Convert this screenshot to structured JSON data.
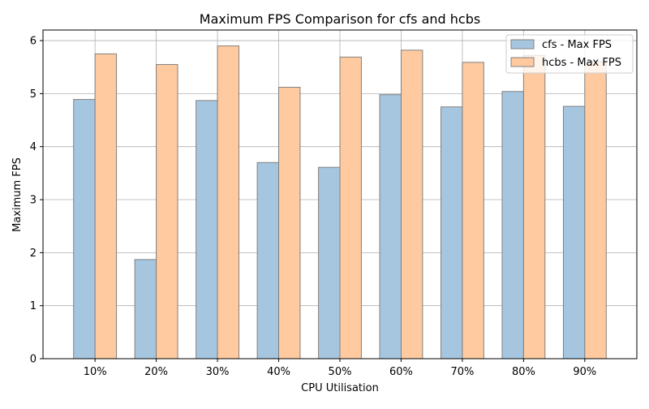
{
  "chart_data": {
    "type": "bar",
    "title": "Maximum FPS Comparison for cfs and hcbs",
    "xlabel": "CPU Utilisation",
    "ylabel": "Maximum FPS",
    "categories": [
      "10%",
      "20%",
      "30%",
      "40%",
      "50%",
      "60%",
      "70%",
      "80%",
      "90%"
    ],
    "series": [
      {
        "name": "cfs - Max FPS",
        "color": "#a6c6df",
        "values": [
          4.89,
          1.87,
          4.87,
          3.7,
          3.61,
          4.98,
          4.75,
          5.04,
          4.76
        ]
      },
      {
        "name": "hcbs - Max FPS",
        "color": "#ffca9f",
        "values": [
          5.75,
          5.55,
          5.9,
          5.12,
          5.69,
          5.82,
          5.59,
          5.72,
          5.6
        ]
      }
    ],
    "ylim": [
      0,
      6.2
    ],
    "yticks": [
      0,
      1,
      2,
      3,
      4,
      5,
      6
    ],
    "grid": true,
    "legend_position": "top-right",
    "bar_edge_color": "#808080"
  }
}
